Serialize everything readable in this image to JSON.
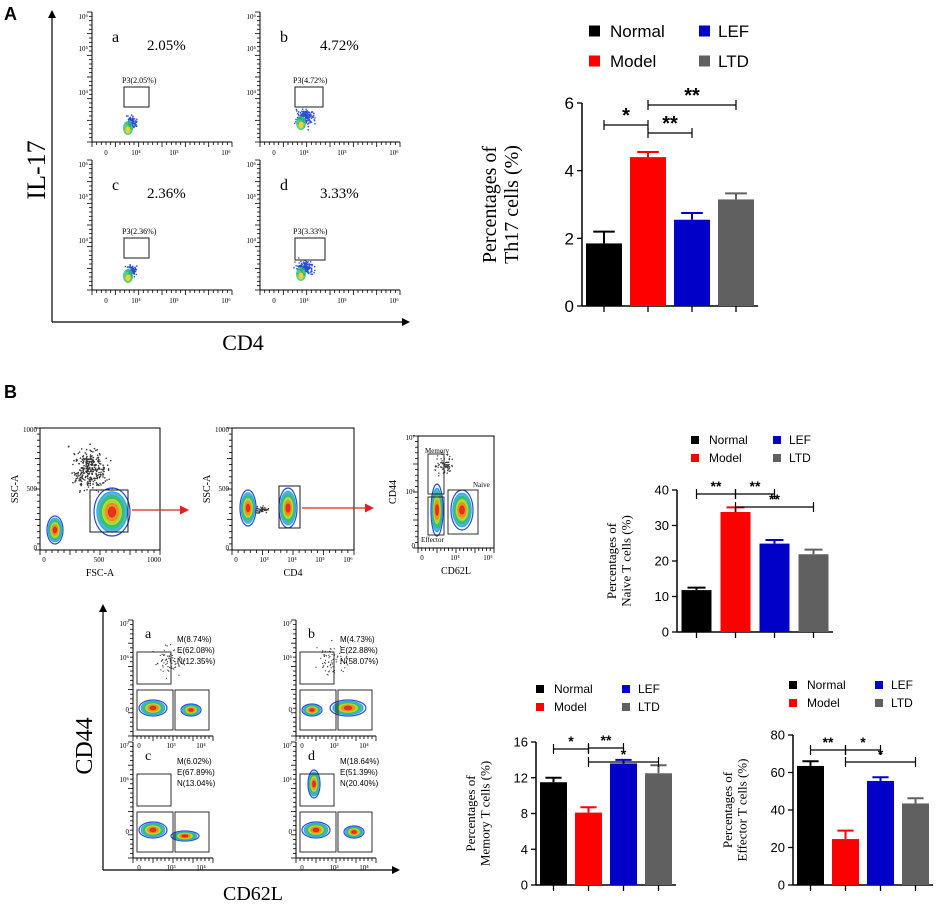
{
  "panels": {
    "A": "A",
    "B": "B"
  },
  "flowA": {
    "ylabel": "IL-17",
    "xlabel": "CD4",
    "ytick_labels": [
      "10⁶",
      "10⁵",
      "10⁴"
    ],
    "xtick_labels": [
      "0",
      "10⁴",
      "10⁵",
      "10⁶"
    ],
    "plots": [
      {
        "letter": "a",
        "pct": "2.05%",
        "gate": "P3(2.05%)"
      },
      {
        "letter": "b",
        "pct": "4.72%",
        "gate": "P3(4.72%)"
      },
      {
        "letter": "c",
        "pct": "2.36%",
        "gate": "P3(2.36%)"
      },
      {
        "letter": "d",
        "pct": "3.33%",
        "gate": "P3(3.33%)"
      }
    ]
  },
  "gatingB": {
    "plot1": {
      "xlabel": "FSC-A",
      "ylabel": "SSC-A",
      "xticks": [
        "0",
        "500",
        "1000"
      ],
      "yticks": [
        "1000",
        "500",
        "0"
      ]
    },
    "plot2": {
      "xlabel": "CD4",
      "ylabel": "SSC-A",
      "xticks": [
        "0",
        "10³",
        "10⁴",
        "10⁵",
        "10⁶"
      ],
      "yticks": [
        "1000",
        "500",
        "0"
      ]
    },
    "plot3": {
      "xlabel": "CD62L",
      "ylabel": "CD44",
      "xticks": [
        "0",
        "10⁴",
        "10⁵"
      ],
      "yticks": [
        "10⁷",
        "10⁶",
        "0"
      ],
      "gates": [
        "Memory",
        "Naive",
        "Effector"
      ]
    }
  },
  "flowB": {
    "ylabel": "CD44",
    "xlabel": "CD62L",
    "yticks": [
      "10⁷",
      "10⁶",
      "0"
    ],
    "xticks": [
      "0",
      "10³",
      "10⁴"
    ],
    "plots": [
      {
        "letter": "a",
        "m": "M(8.74%)",
        "e": "E(62.08%)",
        "n": "N(12.35%)"
      },
      {
        "letter": "b",
        "m": "M(4.73%)",
        "e": "E(22.88%)",
        "n": "N(58.07%)"
      },
      {
        "letter": "c",
        "m": "M(6.02%)",
        "e": "E(67.89%)",
        "n": "N(13.04%)"
      },
      {
        "letter": "d",
        "m": "M(18.64%)",
        "e": "E(51.39%)",
        "n": "N(20.40%)"
      }
    ]
  },
  "legend": {
    "normal": "Normal",
    "model": "Model",
    "lef": "LEF",
    "ltd": "LTD"
  },
  "colors": {
    "normal": "#000000",
    "model": "#ff0000",
    "lef": "#0000c8",
    "ltd": "#606060",
    "gate": "#1a1a1a"
  },
  "chart_data": [
    {
      "id": "th17",
      "type": "bar",
      "categories": [
        "Normal",
        "Model",
        "LEF",
        "LTD"
      ],
      "values": [
        1.85,
        4.4,
        2.55,
        3.15
      ],
      "errors": [
        0.35,
        0.15,
        0.2,
        0.18
      ],
      "ylabel_lines": [
        "Percentages of",
        "Th17 cells (%)"
      ],
      "ylim": [
        0,
        6
      ],
      "yticks": [
        0,
        2,
        4,
        6
      ],
      "significance": [
        {
          "from": 0,
          "to": 1,
          "label": "*"
        },
        {
          "from": 1,
          "to": 2,
          "label": "**"
        },
        {
          "from": 1,
          "to": 3,
          "label": "**"
        }
      ]
    },
    {
      "id": "naive",
      "type": "bar",
      "categories": [
        "Normal",
        "Model",
        "LEF",
        "LTD"
      ],
      "values": [
        11.8,
        33.8,
        24.9,
        21.9
      ],
      "errors": [
        0.7,
        1.3,
        1.0,
        1.3
      ],
      "ylabel_lines": [
        "Percentages of",
        "Naive T cells (%)"
      ],
      "ylim": [
        0,
        40
      ],
      "yticks": [
        0,
        10,
        20,
        30,
        40
      ],
      "significance": [
        {
          "from": 0,
          "to": 1,
          "label": "**"
        },
        {
          "from": 1,
          "to": 2,
          "label": "**"
        },
        {
          "from": 1,
          "to": 3,
          "label": "**"
        }
      ]
    },
    {
      "id": "memory",
      "type": "bar",
      "categories": [
        "Normal",
        "Model",
        "LEF",
        "LTD"
      ],
      "values": [
        11.5,
        8.1,
        13.6,
        12.5
      ],
      "errors": [
        0.5,
        0.6,
        0.4,
        0.9
      ],
      "ylabel_lines": [
        "Percentages of",
        "Memory T cells (%)"
      ],
      "ylim": [
        0,
        16
      ],
      "yticks": [
        0,
        4,
        8,
        12,
        16
      ],
      "significance": [
        {
          "from": 0,
          "to": 1,
          "label": "*"
        },
        {
          "from": 1,
          "to": 2,
          "label": "**"
        },
        {
          "from": 1,
          "to": 3,
          "label": "*"
        }
      ]
    },
    {
      "id": "effector",
      "type": "bar",
      "categories": [
        "Normal",
        "Model",
        "LEF",
        "LTD"
      ],
      "values": [
        63.5,
        24.5,
        55.5,
        43.5
      ],
      "errors": [
        2.5,
        4.5,
        2.0,
        2.8
      ],
      "ylabel_lines": [
        "Percentages of",
        "Effector T cells (%)"
      ],
      "ylim": [
        0,
        80
      ],
      "yticks": [
        0,
        20,
        40,
        60,
        80
      ],
      "significance": [
        {
          "from": 0,
          "to": 1,
          "label": "**"
        },
        {
          "from": 1,
          "to": 2,
          "label": "*"
        },
        {
          "from": 1,
          "to": 3,
          "label": "*"
        }
      ]
    }
  ]
}
